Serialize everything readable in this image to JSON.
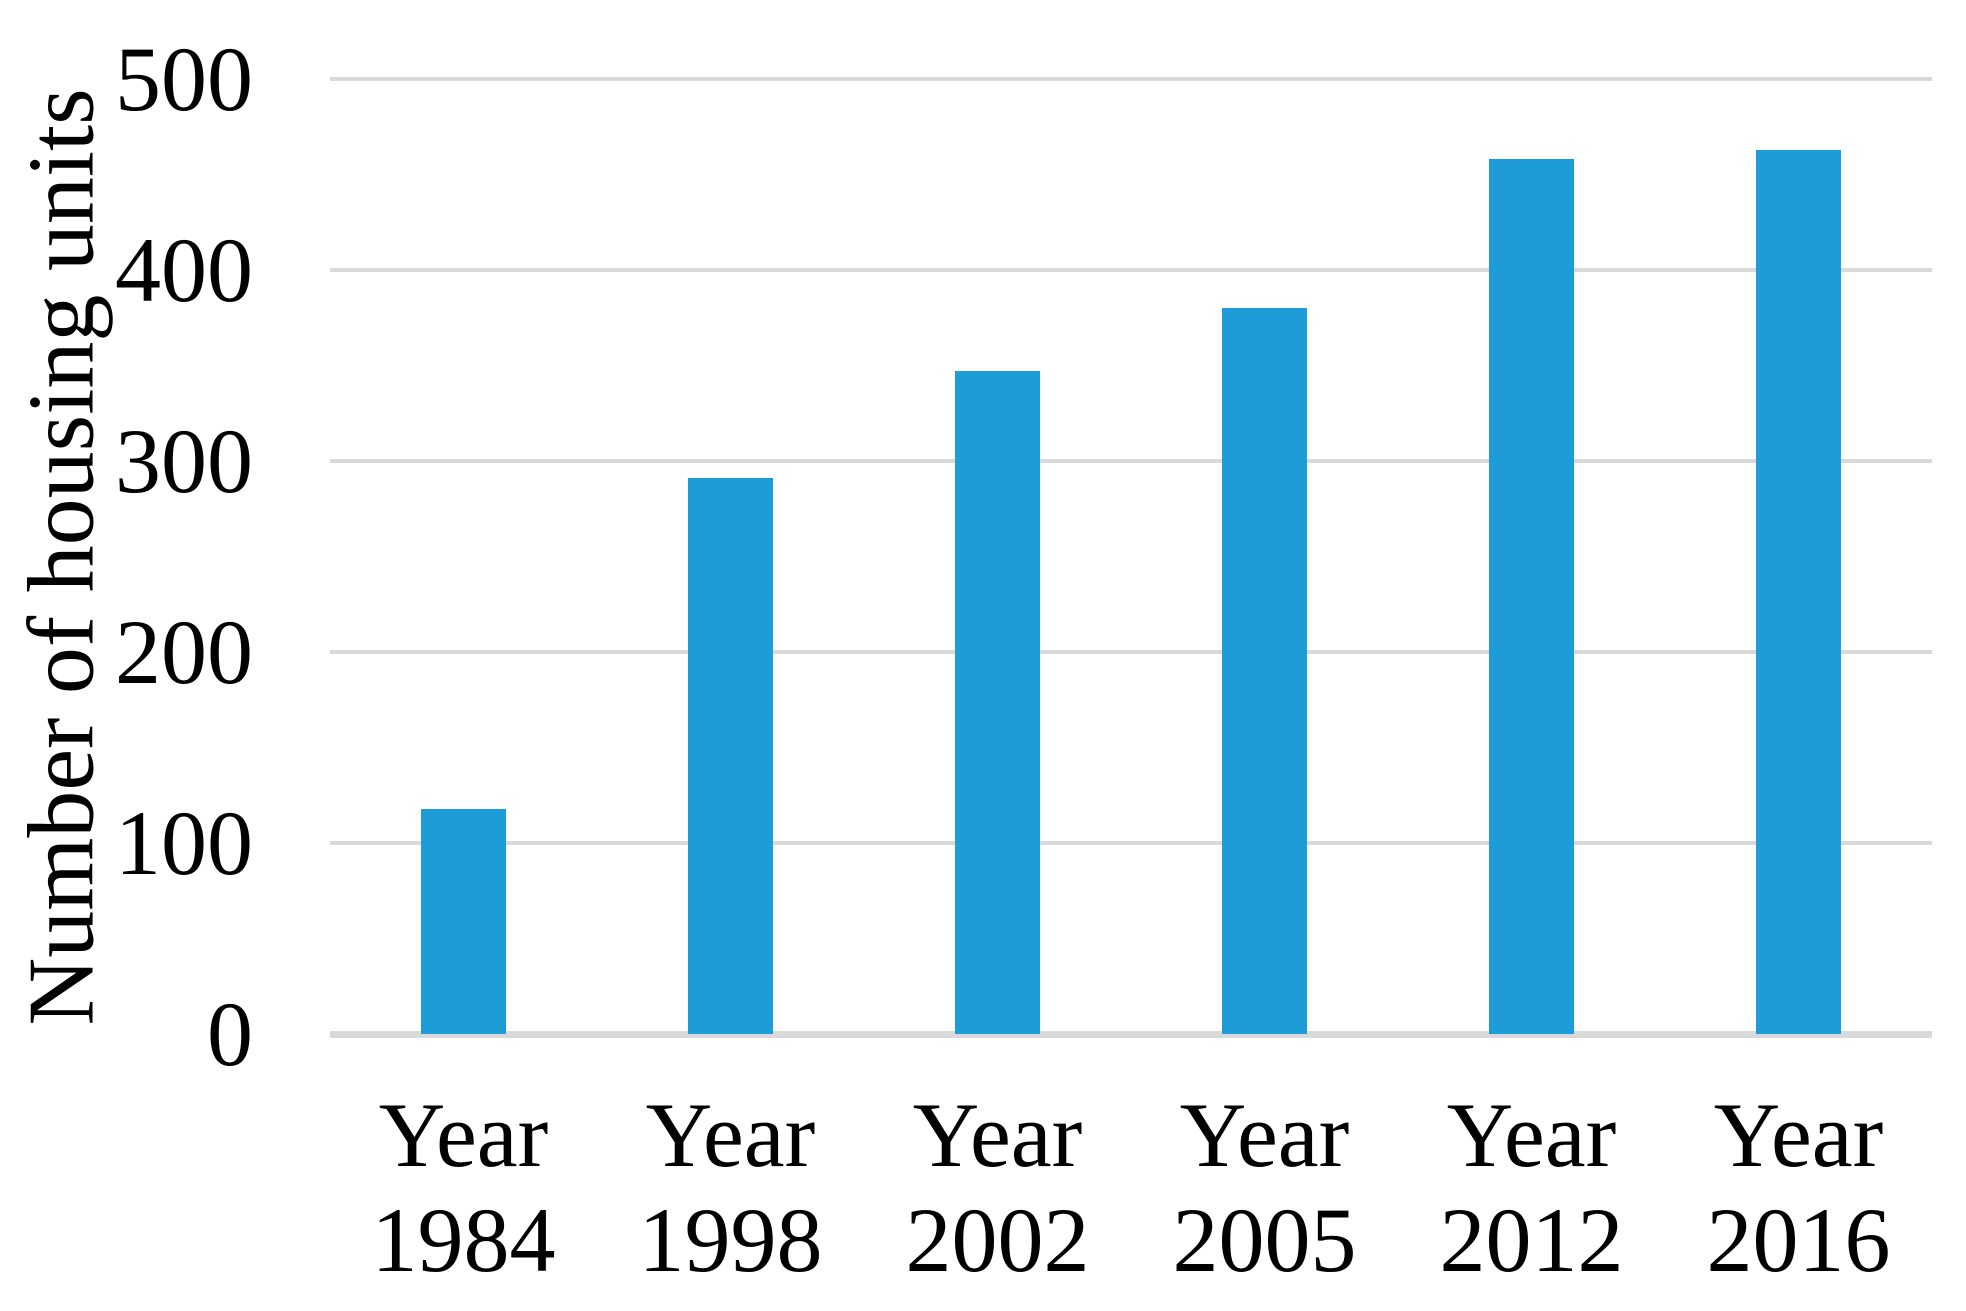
{
  "chart_data": {
    "type": "bar",
    "title": "",
    "categories": [
      "Year 1984",
      "Year 1998",
      "Year 2002",
      "Year 2005",
      "Year 2012",
      "Year 2016"
    ],
    "values": [
      118,
      291,
      347,
      380,
      458,
      463
    ],
    "xlabel": "",
    "ylabel": "Number of housing units",
    "ylim": [
      0,
      500
    ],
    "yticks": [
      0,
      100,
      200,
      300,
      400,
      500
    ],
    "grid": true,
    "legend": false,
    "bar_color": "#1e9cd7",
    "gridline_color": "#d9d9d9",
    "axis_line_color": "#d9d9d9",
    "text_color": "#000000",
    "background_color": "#ffffff"
  }
}
